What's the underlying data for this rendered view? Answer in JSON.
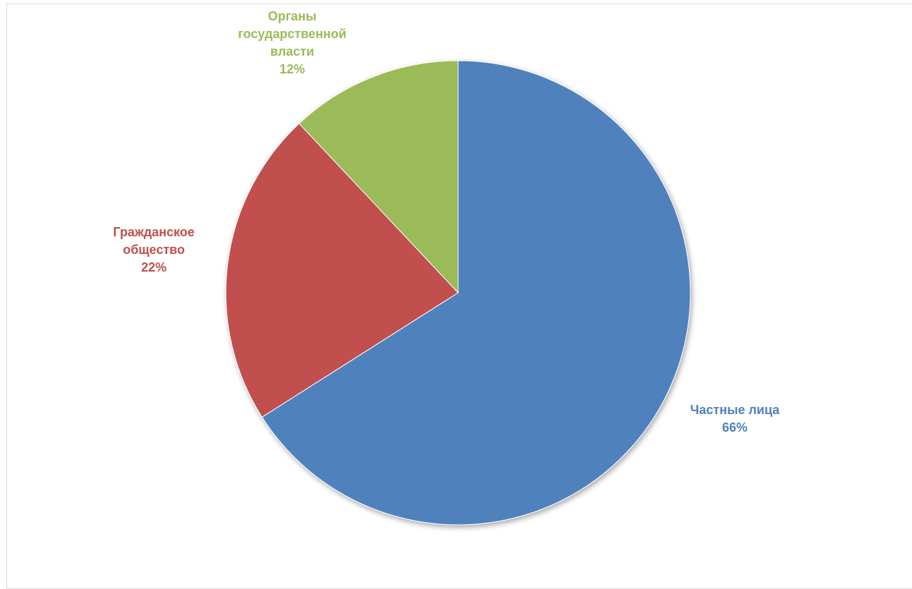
{
  "chart_data": {
    "type": "pie",
    "title": "",
    "slices": [
      {
        "label_lines": [
          "Частные лица"
        ],
        "percent_label": "66%",
        "value": 66,
        "color": "#4f81bd",
        "label_color": "#4f81bd"
      },
      {
        "label_lines": [
          "Гражданское",
          "общество"
        ],
        "percent_label": "22%",
        "value": 22,
        "color": "#c0504d",
        "label_color": "#c0504d"
      },
      {
        "label_lines": [
          "Органы",
          "государственной",
          "власти"
        ],
        "percent_label": "12%",
        "value": 12,
        "color": "#9bbb59",
        "label_color": "#9bbb59"
      }
    ],
    "start_angle_deg": 0,
    "direction": "clockwise",
    "legend": "none",
    "data_labels": "outside, category name and percentage"
  }
}
